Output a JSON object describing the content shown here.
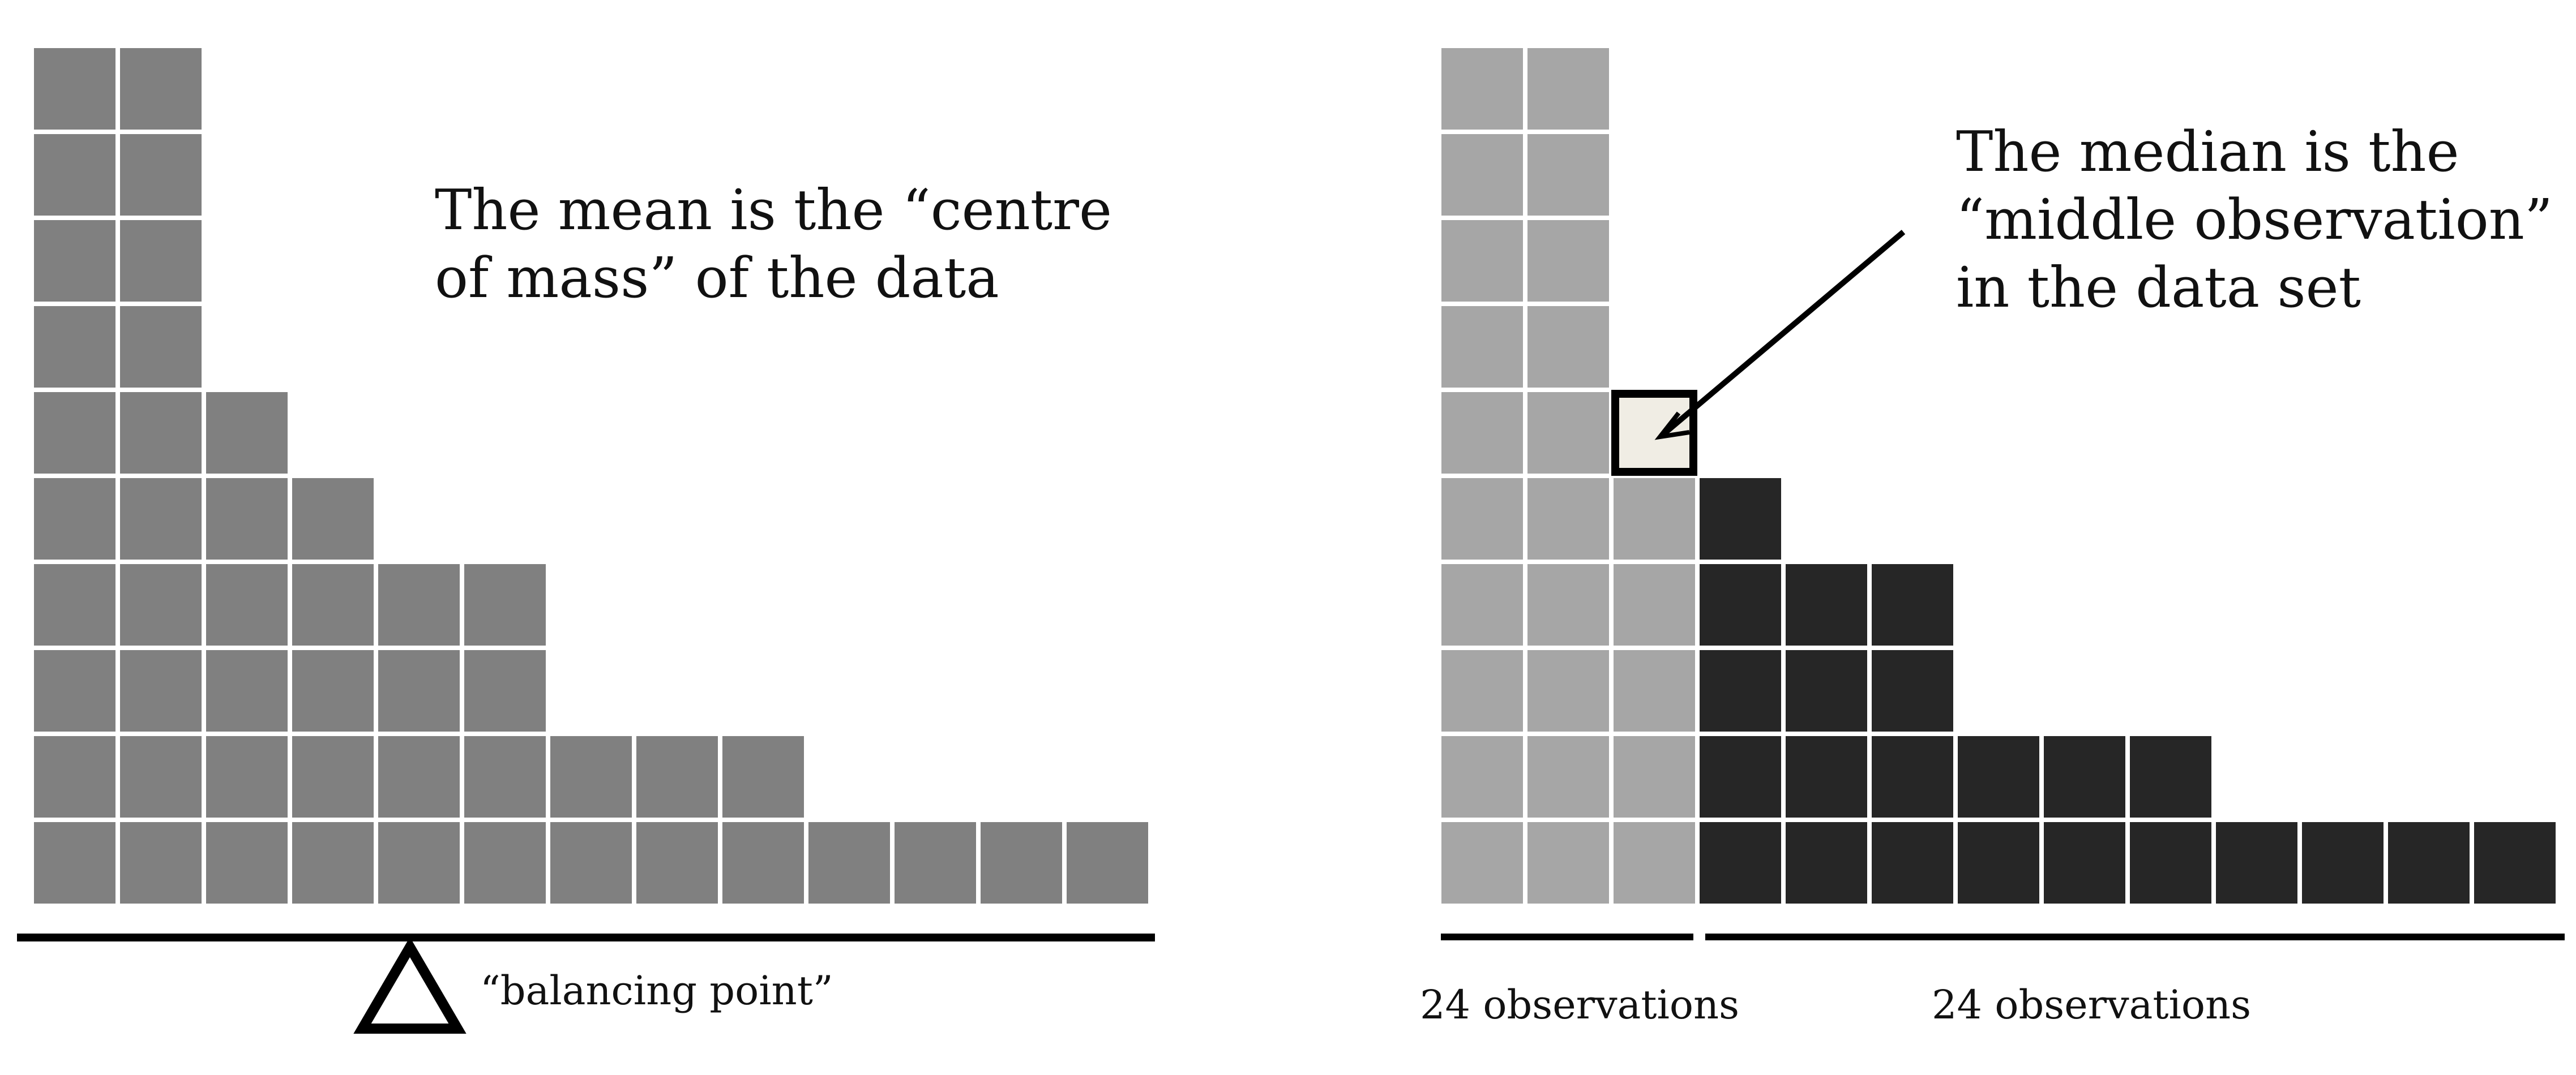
{
  "colors": {
    "mean_block": "#808080",
    "lower_block": "#a6a6a6",
    "upper_block": "#262626",
    "median_block": "#f0ede4",
    "line": "#000000",
    "background": "#ffffff"
  },
  "mean_panel": {
    "column_heights": [
      10,
      10,
      6,
      5,
      4,
      4,
      2,
      2,
      2,
      1,
      1,
      1,
      1
    ],
    "caption_lines": [
      "The mean is the “centre",
      "of mass” of the data"
    ],
    "fulcrum_label": "“balancing point”"
  },
  "median_panel": {
    "column_heights": [
      10,
      10,
      6,
      5,
      4,
      4,
      2,
      2,
      2,
      1,
      1,
      1,
      1
    ],
    "median_column": 2,
    "median_row": 6,
    "caption_lines": [
      "The median is the",
      "“middle observation”",
      "in the data set"
    ],
    "left_group_label": "24 observations",
    "right_group_label": "24 observations"
  }
}
